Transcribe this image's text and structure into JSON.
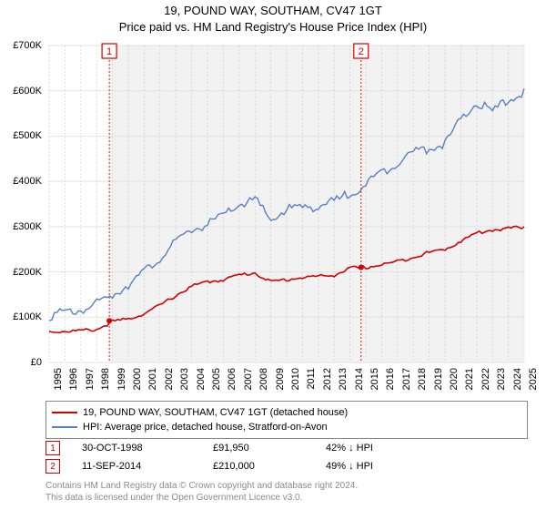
{
  "title_line1": "19, POUND WAY, SOUTHAM, CV47 1GT",
  "title_line2": "Price paid vs. HM Land Registry's House Price Index (HPI)",
  "chart": {
    "type": "line",
    "background_color": "#ffffff",
    "grid_color": "#e3e3e3",
    "dotted_grid_color": "#bcbcbc",
    "axis_color": "#000000",
    "ylim": [
      0,
      700
    ],
    "ytick_step": 100,
    "ytick_prefix": "£",
    "ytick_suffix": "K",
    "ylabel_fontsize": 11,
    "xyears": [
      1995,
      1996,
      1997,
      1998,
      1999,
      2000,
      2001,
      2002,
      2003,
      2004,
      2005,
      2006,
      2007,
      2008,
      2009,
      2010,
      2011,
      2012,
      2013,
      2014,
      2015,
      2016,
      2017,
      2018,
      2019,
      2020,
      2021,
      2022,
      2023,
      2024,
      2025
    ],
    "xlabel_fontsize": 11,
    "series": [
      {
        "name": "price_paid",
        "color": "#d40000",
        "line_width": 1.6,
        "values": [
          70,
          71,
          72,
          75,
          92,
          98,
          110,
          128,
          150,
          170,
          180,
          185,
          195,
          200,
          180,
          185,
          190,
          192,
          195,
          210,
          212,
          218,
          225,
          235,
          245,
          252,
          270,
          288,
          295,
          298,
          300
        ]
      },
      {
        "name": "hpi",
        "color": "#5b7fc7",
        "line_width": 1.4,
        "values": [
          110,
          115,
          122,
          135,
          155,
          180,
          205,
          238,
          270,
          300,
          310,
          330,
          355,
          365,
          320,
          345,
          348,
          352,
          360,
          380,
          400,
          425,
          450,
          470,
          480,
          490,
          540,
          580,
          560,
          585,
          605
        ]
      }
    ],
    "markers": [
      {
        "label": "1",
        "year": 1998.8,
        "value": 92,
        "color": "#d40000"
      },
      {
        "label": "2",
        "year": 2014.7,
        "value": 210,
        "color": "#d40000"
      }
    ],
    "marker_line_color": "#d40000",
    "marker_band_start": 1998.8,
    "marker_band_color": "#f2f2f2"
  },
  "legend": {
    "items": [
      {
        "color": "#d40000",
        "label": "19, POUND WAY, SOUTHAM, CV47 1GT (detached house)"
      },
      {
        "color": "#5b7fc7",
        "label": "HPI: Average price, detached house, Stratford-on-Avon"
      }
    ]
  },
  "marker_rows": [
    {
      "badge": "1",
      "badge_color": "#d40000",
      "date": "30-OCT-1998",
      "price": "£91,950",
      "delta": "42% ↓ HPI"
    },
    {
      "badge": "2",
      "badge_color": "#d40000",
      "date": "11-SEP-2014",
      "price": "£210,000",
      "delta": "49% ↓ HPI"
    }
  ],
  "footer_line1": "Contains HM Land Registry data © Crown copyright and database right 2024.",
  "footer_line2": "This data is licensed under the Open Government Licence v3.0."
}
